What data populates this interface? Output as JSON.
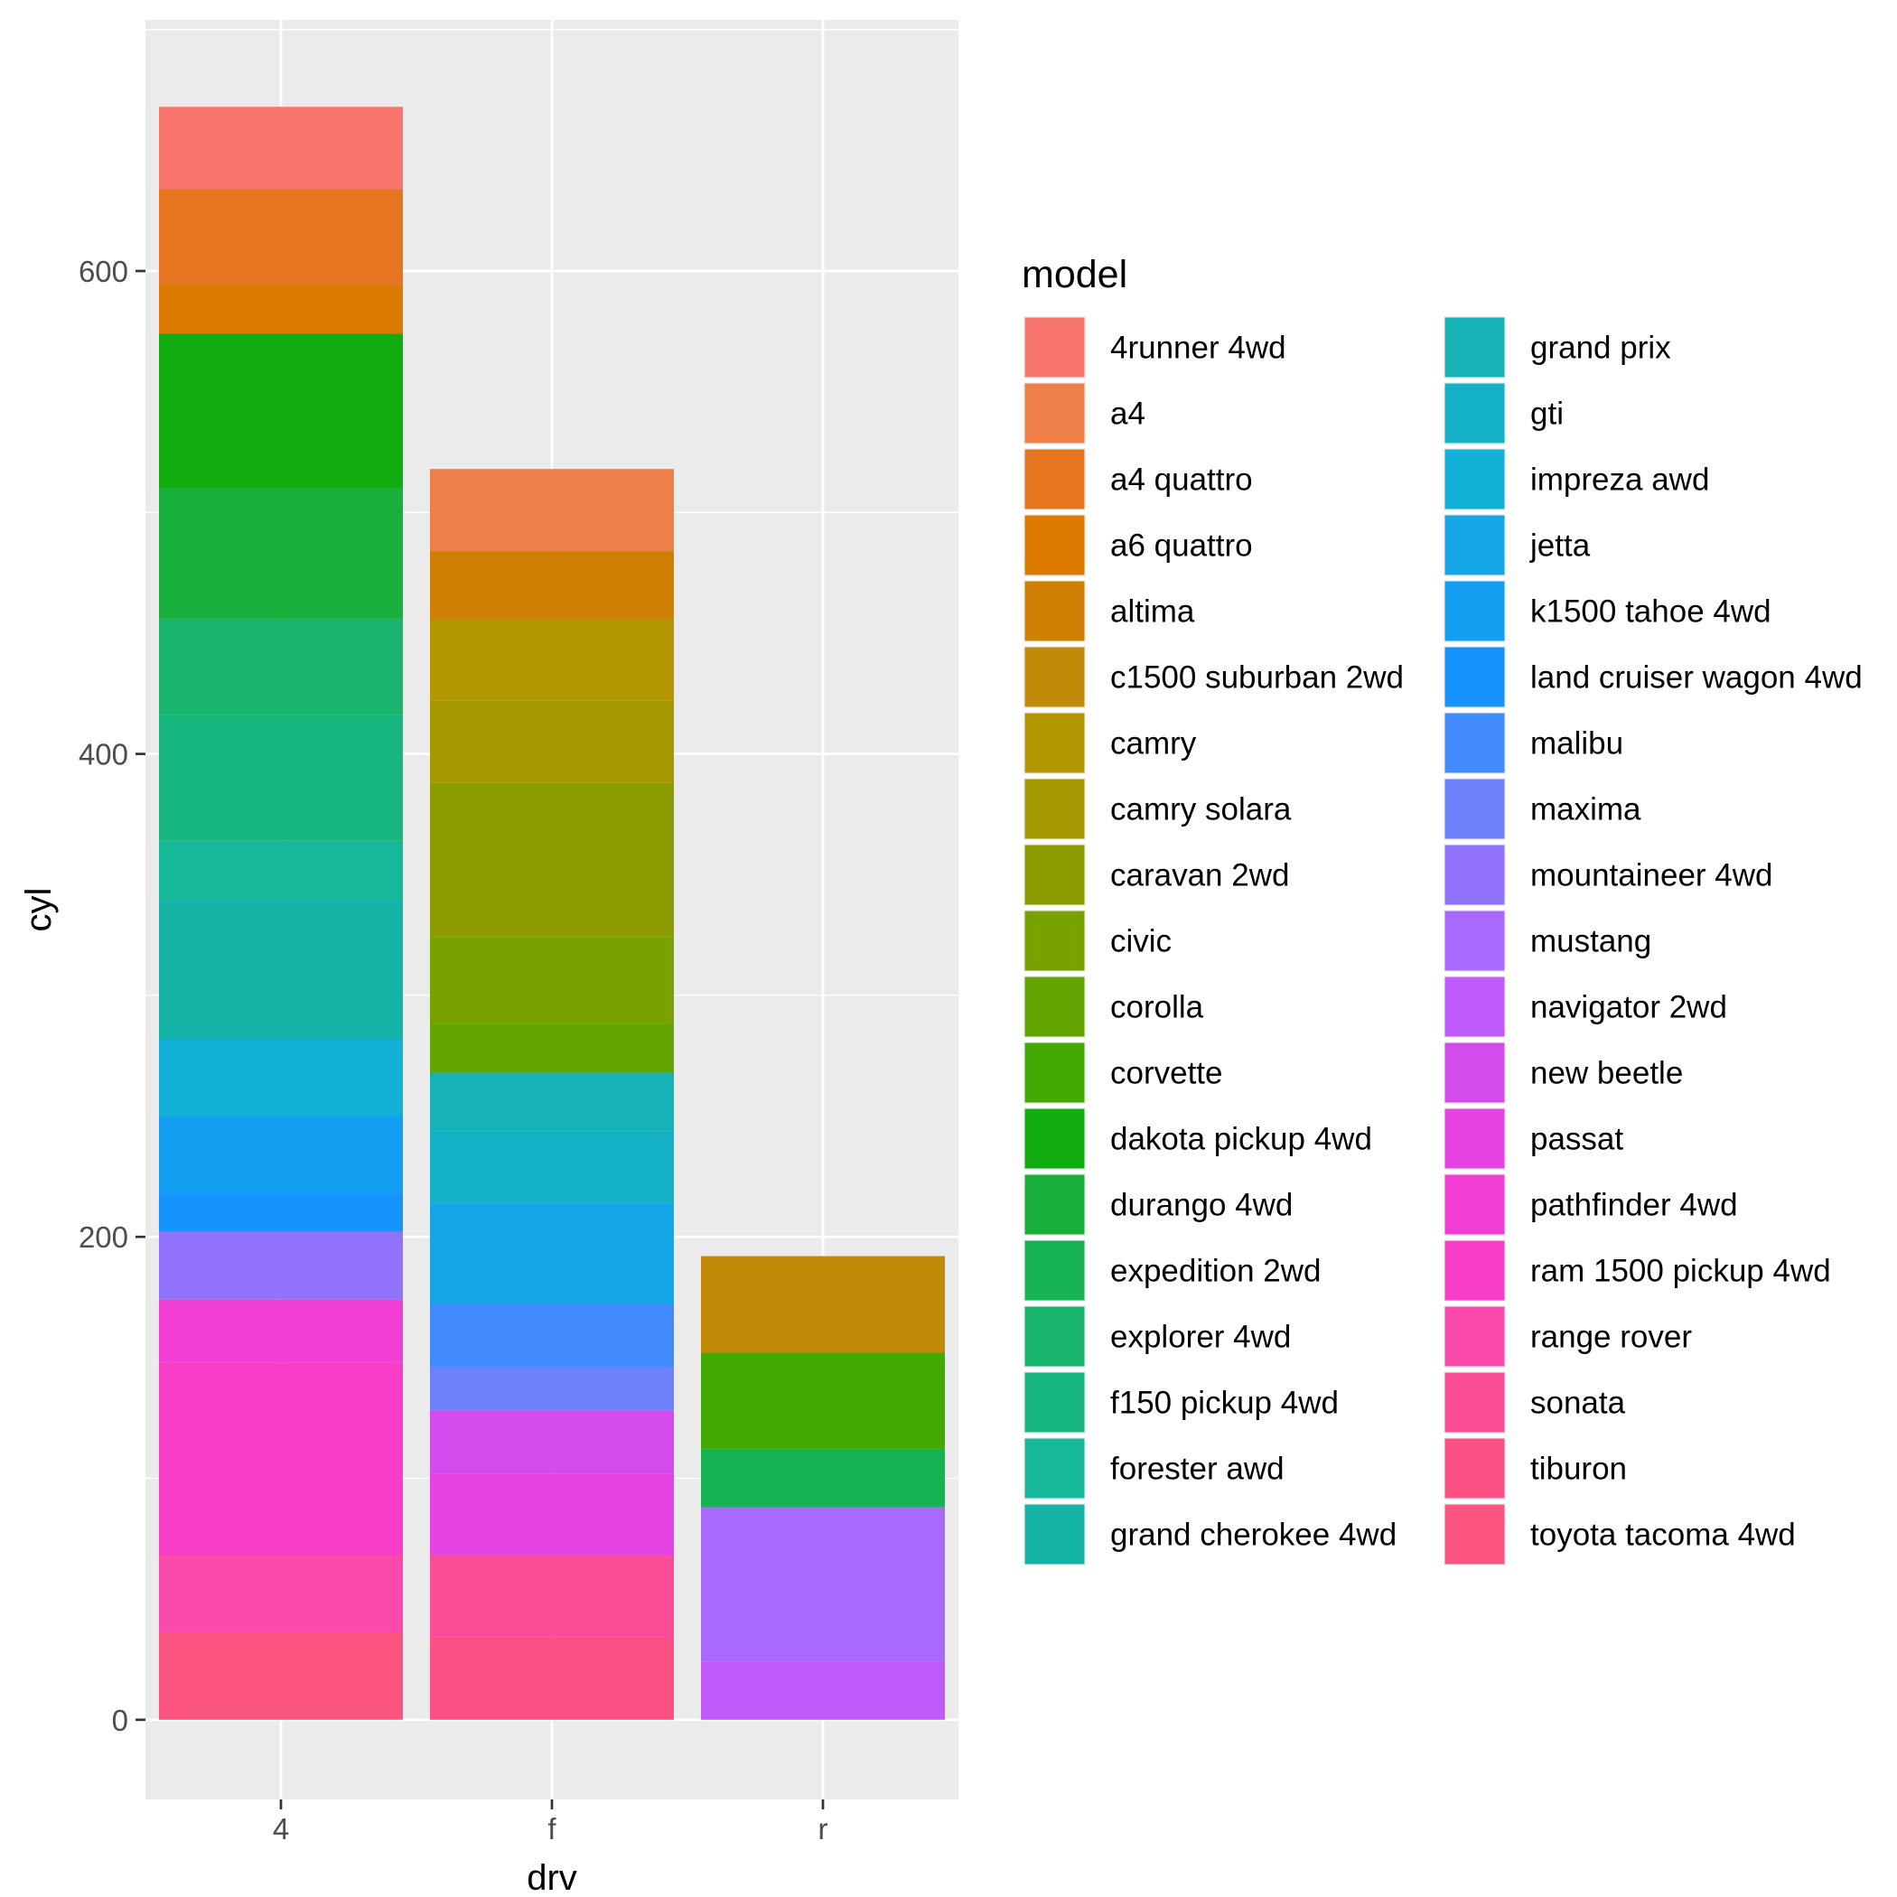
{
  "chart_data": {
    "type": "bar",
    "stacked": true,
    "xlabel": "drv",
    "ylabel": "cyl",
    "categories": [
      "4",
      "f",
      "r"
    ],
    "ylim": [
      -33,
      704
    ],
    "yticks": [
      0,
      200,
      400,
      600
    ],
    "grid": true,
    "legend": {
      "title": "model",
      "placement": "right",
      "columns": 2,
      "entries": [
        {
          "name": "4runner 4wd",
          "color": "#F8766D"
        },
        {
          "name": "a4",
          "color": "#EF7F48"
        },
        {
          "name": "a4 quattro",
          "color": "#E6751F"
        },
        {
          "name": "a6 quattro",
          "color": "#DC7A00"
        },
        {
          "name": "altima",
          "color": "#CF8004"
        },
        {
          "name": "c1500 suburban 2wd",
          "color": "#C18A08"
        },
        {
          "name": "camry",
          "color": "#B49600"
        },
        {
          "name": "camry solara",
          "color": "#A49A00"
        },
        {
          "name": "caravan 2wd",
          "color": "#8C9C00"
        },
        {
          "name": "civic",
          "color": "#78A200"
        },
        {
          "name": "corolla",
          "color": "#63A500"
        },
        {
          "name": "corvette",
          "color": "#42AA03"
        },
        {
          "name": "dakota pickup 4wd",
          "color": "#10AC10"
        },
        {
          "name": "durango 4wd",
          "color": "#19AF3C"
        },
        {
          "name": "expedition 2wd",
          "color": "#17B352"
        },
        {
          "name": "explorer 4wd",
          "color": "#1AB56C"
        },
        {
          "name": "f150 pickup 4wd",
          "color": "#17B77F"
        },
        {
          "name": "forester awd",
          "color": "#16B89A"
        },
        {
          "name": "grand cherokee 4wd",
          "color": "#16B4A6"
        },
        {
          "name": "grand prix",
          "color": "#17B2B5"
        },
        {
          "name": "gti",
          "color": "#14B0C6"
        },
        {
          "name": "impreza awd",
          "color": "#12AFD7"
        },
        {
          "name": "jetta",
          "color": "#14A6E7"
        },
        {
          "name": "k1500 tahoe 4wd",
          "color": "#129FF2"
        },
        {
          "name": "land cruiser wagon 4wd",
          "color": "#1693FD"
        },
        {
          "name": "malibu",
          "color": "#418BFD"
        },
        {
          "name": "maxima",
          "color": "#6E80FC"
        },
        {
          "name": "mountaineer 4wd",
          "color": "#9174FB"
        },
        {
          "name": "mustang",
          "color": "#A869FC"
        },
        {
          "name": "navigator 2wd",
          "color": "#C15AFB"
        },
        {
          "name": "new beetle",
          "color": "#D34BEC"
        },
        {
          "name": "passat",
          "color": "#E443E1"
        },
        {
          "name": "pathfinder 4wd",
          "color": "#F13DD4"
        },
        {
          "name": "ram 1500 pickup 4wd",
          "color": "#F83DC6"
        },
        {
          "name": "range rover",
          "color": "#FA4AAC"
        },
        {
          "name": "sonata",
          "color": "#FB4D97"
        },
        {
          "name": "tiburon",
          "color": "#FB5084"
        },
        {
          "name": "toyota tacoma 4wd",
          "color": "#FC5480"
        }
      ]
    },
    "series": [
      {
        "category": "4",
        "segments": [
          {
            "model": "toyota tacoma 4wd",
            "value": 36
          },
          {
            "model": "range rover",
            "value": 32
          },
          {
            "model": "ram 1500 pickup 4wd",
            "value": 80
          },
          {
            "model": "pathfinder 4wd",
            "value": 26
          },
          {
            "model": "mountaineer 4wd",
            "value": 28
          },
          {
            "model": "land cruiser wagon 4wd",
            "value": 16
          },
          {
            "model": "k1500 tahoe 4wd",
            "value": 32
          },
          {
            "model": "impreza awd",
            "value": 32
          },
          {
            "model": "grand cherokee 4wd",
            "value": 58
          },
          {
            "model": "forester awd",
            "value": 24
          },
          {
            "model": "f150 pickup 4wd",
            "value": 52
          },
          {
            "model": "explorer 4wd",
            "value": 40
          },
          {
            "model": "durango 4wd",
            "value": 54
          },
          {
            "model": "dakota pickup 4wd",
            "value": 64
          },
          {
            "model": "a6 quattro",
            "value": 20
          },
          {
            "model": "a4 quattro",
            "value": 40
          },
          {
            "model": "4runner 4wd",
            "value": 34
          }
        ]
      },
      {
        "category": "f",
        "segments": [
          {
            "model": "tiburon",
            "value": 34
          },
          {
            "model": "sonata",
            "value": 34
          },
          {
            "model": "passat",
            "value": 34
          },
          {
            "model": "new beetle",
            "value": 26
          },
          {
            "model": "maxima",
            "value": 18
          },
          {
            "model": "malibu",
            "value": 26
          },
          {
            "model": "jetta",
            "value": 42
          },
          {
            "model": "gti",
            "value": 30
          },
          {
            "model": "grand prix",
            "value": 24
          },
          {
            "model": "corolla",
            "value": 20
          },
          {
            "model": "civic",
            "value": 36
          },
          {
            "model": "caravan 2wd",
            "value": 64
          },
          {
            "model": "camry solara",
            "value": 34
          },
          {
            "model": "camry",
            "value": 34
          },
          {
            "model": "altima",
            "value": 28
          },
          {
            "model": "a4",
            "value": 34
          }
        ]
      },
      {
        "category": "r",
        "segments": [
          {
            "model": "navigator 2wd",
            "value": 24
          },
          {
            "model": "mustang",
            "value": 64
          },
          {
            "model": "expedition 2wd",
            "value": 24
          },
          {
            "model": "corvette",
            "value": 40
          },
          {
            "model": "c1500 suburban 2wd",
            "value": 40
          }
        ]
      }
    ]
  }
}
